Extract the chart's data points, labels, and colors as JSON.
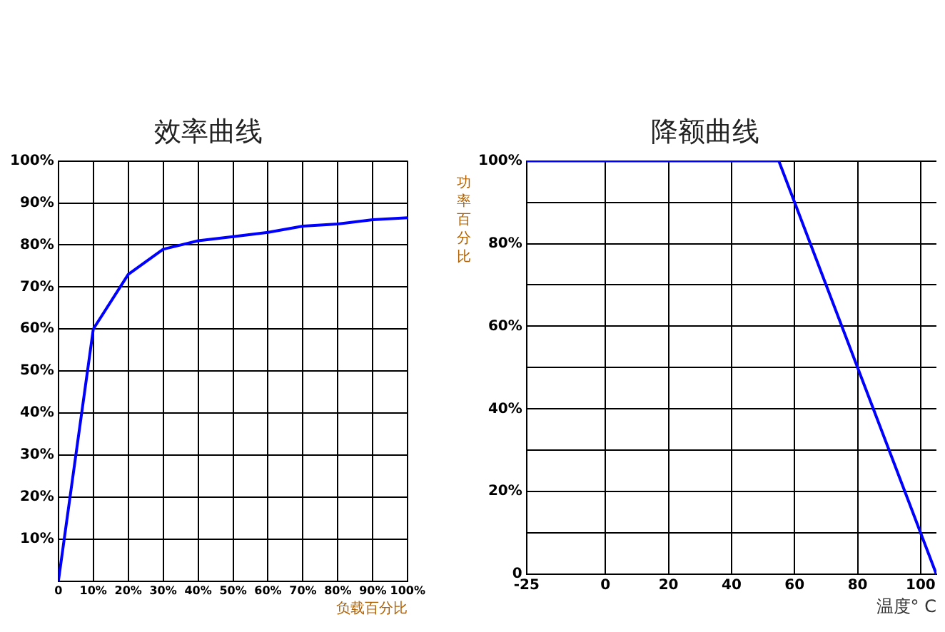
{
  "chart_data": [
    {
      "type": "line",
      "title": "效率曲线",
      "xlabel": "负载百分比",
      "xlim": [
        0,
        100
      ],
      "ylim": [
        0,
        100
      ],
      "xticks": [
        0,
        {
          "value": 10,
          "label": "10%"
        },
        {
          "value": 20,
          "label": "20%"
        },
        {
          "value": 30,
          "label": "30%"
        },
        {
          "value": 40,
          "label": "40%"
        },
        {
          "value": 50,
          "label": "50%"
        },
        {
          "value": 60,
          "label": "60%"
        },
        {
          "value": 70,
          "label": "70%"
        },
        {
          "value": 80,
          "label": "80%"
        },
        {
          "value": 90,
          "label": "90%"
        },
        {
          "value": 100,
          "label": "100%"
        }
      ],
      "yticks": [
        {
          "value": 0,
          "label": null
        },
        {
          "value": 10,
          "label": "10%"
        },
        {
          "value": 20,
          "label": "20%"
        },
        {
          "value": 30,
          "label": "30%"
        },
        {
          "value": 40,
          "label": "40%"
        },
        {
          "value": 50,
          "label": "50%"
        },
        {
          "value": 60,
          "label": "60%"
        },
        {
          "value": 70,
          "label": "70%"
        },
        {
          "value": 80,
          "label": "80%"
        },
        {
          "value": 90,
          "label": "90%"
        },
        {
          "value": 100,
          "label": "100%"
        }
      ],
      "x": [
        0,
        10,
        20,
        30,
        40,
        50,
        60,
        70,
        80,
        90,
        100
      ],
      "series": [
        {
          "color": "#0000ff",
          "values": [
            0,
            60,
            73,
            79,
            81,
            82,
            83,
            84.5,
            85,
            86,
            86.5
          ]
        }
      ],
      "grid": true,
      "legend": false,
      "marker": "none"
    },
    {
      "type": "line",
      "title": "降额曲线",
      "xlabel": "温度° C",
      "ylabel": "功率百分比",
      "xlim": [
        -25,
        105
      ],
      "ylim": [
        0,
        100
      ],
      "xticks": [
        -25,
        0,
        20,
        40,
        60,
        80,
        100
      ],
      "yticks": [
        0,
        {
          "value": 10,
          "label": null
        },
        {
          "value": 20,
          "label": "20%"
        },
        {
          "value": 30,
          "label": null
        },
        {
          "value": 40,
          "label": "40%"
        },
        {
          "value": 50,
          "label": null
        },
        {
          "value": 60,
          "label": "60%"
        },
        {
          "value": 70,
          "label": null
        },
        {
          "value": 80,
          "label": "80%"
        },
        {
          "value": 90,
          "label": null
        },
        {
          "value": 100,
          "label": "100%"
        }
      ],
      "x": [
        -25,
        55,
        105
      ],
      "series": [
        {
          "color": "#0000ff",
          "values": [
            100,
            100,
            0
          ]
        }
      ],
      "grid": true,
      "legend": false,
      "marker": "none"
    }
  ]
}
